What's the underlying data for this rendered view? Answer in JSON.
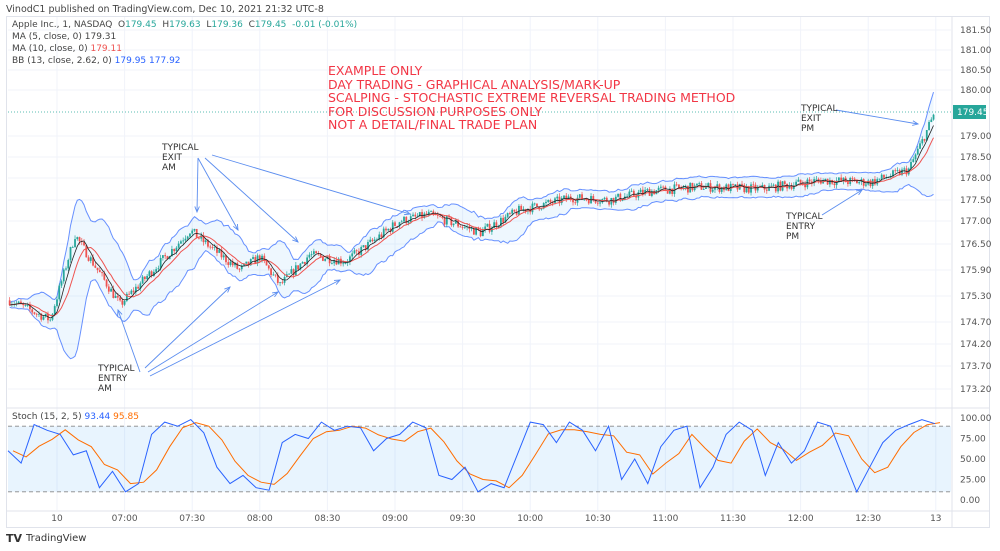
{
  "header": {
    "published": "VinodC1 published on TradingView.com, Dec 10, 2021 21:32 UTC-8"
  },
  "legend": {
    "symbol": "Apple Inc., 1, NASDAQ",
    "o_label": "O",
    "o": "179.45",
    "h_label": "H",
    "h": "179.63",
    "l_label": "L",
    "l": "179.36",
    "c_label": "C",
    "c": "179.45",
    "change": "-0.01 (-0.01%)",
    "ma5_label": "MA (5, close, 0)",
    "ma5": "179.31",
    "ma10_label": "MA (10, close, 0)",
    "ma10": "179.11",
    "bb_label": "BB (13, close, 2.62, 0)",
    "bb_upper": "179.95",
    "bb_lower": "177.92",
    "stoch_label": "Stoch (15, 2, 5)",
    "stoch_k": "93.44",
    "stoch_d": "95.85"
  },
  "note_lines": [
    "EXAMPLE ONLY",
    "DAY TRADING - GRAPHICAL ANALYSIS/MARK-UP",
    "SCALPING - STOCHASTIC EXTREME REVERSAL TRADING METHOD",
    "FOR DISCUSSION PURPOSES ONLY",
    "NOT A DETAIL/FINAL TRADE PLAN"
  ],
  "annotations": {
    "exit_am": [
      "TYPICAL",
      "EXIT",
      "AM"
    ],
    "entry_am": [
      "TYPICAL",
      "ENTRY",
      "AM"
    ],
    "exit_pm": [
      "TYPICAL",
      "EXIT",
      "PM"
    ],
    "entry_pm": [
      "TYPICAL",
      "ENTRY",
      "PM"
    ]
  },
  "colors": {
    "up": "#26a69a",
    "down": "#ef5350",
    "bb": "#2962ff",
    "ma5": "#222222",
    "ma10": "#ef5350",
    "stoch_k": "#2962ff",
    "stoch_d": "#ff6d00",
    "note": "#f23645",
    "last_price": "#26a69a"
  },
  "chart_data": {
    "type": "candlestick",
    "price_ticks": [
      "181.50",
      "181.00",
      "180.50",
      "180.00",
      "179.00",
      "178.50",
      "178.00",
      "177.50",
      "177.00",
      "176.50",
      "175.90",
      "175.30",
      "174.70",
      "174.20",
      "173.70",
      "173.20"
    ],
    "last_price": "179.45",
    "stoch_ticks": [
      "100.00",
      "75.00",
      "50.00",
      "25.00",
      "0.00"
    ],
    "stoch_bands": [
      90,
      10
    ],
    "time_ticks": [
      "10",
      "07:00",
      "07:30",
      "08:00",
      "08:30",
      "09:00",
      "09:30",
      "10:00",
      "10:30",
      "11:00",
      "11:30",
      "12:00",
      "12:30",
      "13"
    ],
    "close_path": [
      [
        "06:09",
        175.2
      ],
      [
        "06:27",
        174.75
      ],
      [
        "06:38",
        176.7
      ],
      [
        "06:58",
        175.1
      ],
      [
        "07:29",
        176.8
      ],
      [
        "07:51",
        175.9
      ],
      [
        "08:00",
        176.2
      ],
      [
        "08:09",
        175.55
      ],
      [
        "08:22",
        176.25
      ],
      [
        "08:38",
        176.1
      ],
      [
        "09:02",
        177.0
      ],
      [
        "09:15",
        177.15
      ],
      [
        "09:38",
        176.75
      ],
      [
        "09:55",
        177.25
      ],
      [
        "10:18",
        177.55
      ],
      [
        "10:35",
        177.5
      ],
      [
        "10:53",
        177.7
      ],
      [
        "11:15",
        177.8
      ],
      [
        "11:42",
        177.75
      ],
      [
        "12:09",
        177.95
      ],
      [
        "12:31",
        177.9
      ],
      [
        "12:48",
        178.2
      ],
      [
        "12:59",
        179.45
      ]
    ],
    "stoch_k": [
      60,
      45,
      92,
      85,
      80,
      55,
      60,
      15,
      35,
      10,
      20,
      80,
      95,
      90,
      98,
      82,
      40,
      20,
      30,
      15,
      12,
      70,
      80,
      75,
      95,
      85,
      90,
      88,
      60,
      75,
      80,
      95,
      88,
      30,
      25,
      40,
      10,
      20,
      15,
      55,
      95,
      92,
      70,
      95,
      85,
      60,
      90,
      25,
      50,
      20,
      65,
      85,
      90,
      15,
      40,
      80,
      95,
      85,
      30,
      70,
      45,
      60,
      95,
      90,
      50,
      10,
      40,
      70,
      85,
      92,
      98,
      93
    ]
  },
  "footer": {
    "brand": "TradingView"
  }
}
